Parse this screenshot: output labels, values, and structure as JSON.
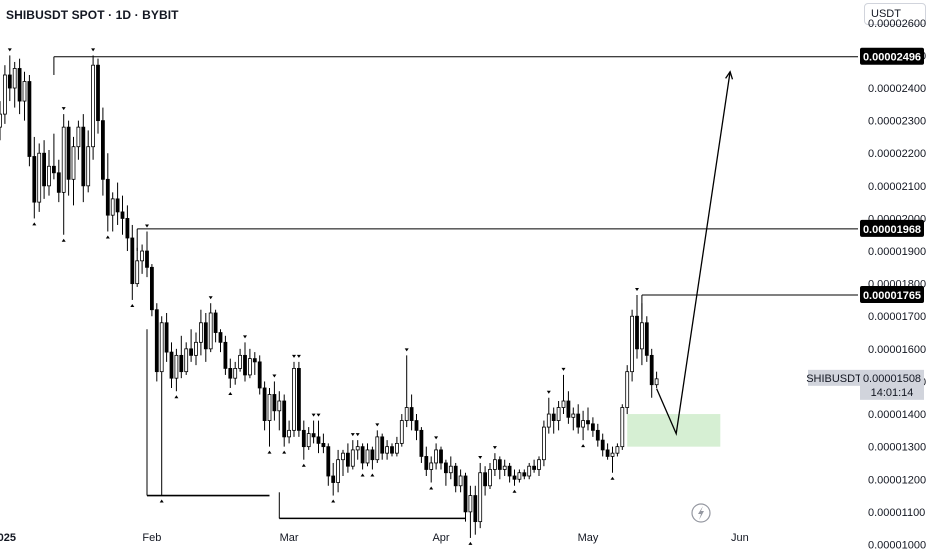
{
  "header": {
    "title": "SHIBUSDT SPOT · 1D · BYBIT",
    "currency_button": "USDT"
  },
  "colors": {
    "up": "#ffffff",
    "down": "#000000",
    "wick": "#000000",
    "line": "#000000",
    "zone": "#d6efd3",
    "highlight_bg": "#000000",
    "current_bg": "#d1d4dc",
    "arrow": "#000000"
  },
  "icons": {
    "replay": "lightning-bolt-icon"
  },
  "chart_data": {
    "type": "candlestick",
    "symbol": "SHIBUSDT",
    "exchange": "BYBIT",
    "interval": "1D",
    "y_ticks": [
      "0.00002600",
      "0.00002500",
      "0.00002400",
      "0.00002300",
      "0.00002200",
      "0.00002100",
      "0.00002000",
      "0.00001900",
      "0.00001800",
      "0.00001700",
      "0.00001600",
      "0.00001500",
      "0.00001400",
      "0.00001300",
      "0.00001200",
      "0.00001100",
      "0.00001000"
    ],
    "x_ticks": [
      "2025",
      "Feb",
      "Mar",
      "Apr",
      "May",
      "Jun"
    ],
    "ylim": [
      9.83e-06,
      2.67e-05
    ],
    "grid": false,
    "last_price": {
      "label": "SHIBUSDT",
      "value": "0.00001508",
      "countdown": "14:01:14"
    },
    "levels": [
      {
        "value": "0.00002496",
        "from": "2025-01-12"
      },
      {
        "value": "0.00001968",
        "from": "2025-01-29"
      },
      {
        "value": "0.00001765",
        "from": "2025-05-12"
      }
    ],
    "support_lines": [
      {
        "value": 1.15e-05,
        "from": "2025-01-31",
        "to": "2025-02-25"
      },
      {
        "value": 1.08e-05,
        "from": "2025-02-27",
        "to": "2025-04-06"
      }
    ],
    "zone": {
      "from": "2025-05-09",
      "to": "2025-05-28",
      "low": 1.3e-05,
      "high": 1.4e-05
    },
    "projection": [
      {
        "date": "2025-05-15",
        "price": 1.478e-05
      },
      {
        "date": "2025-05-19",
        "price": 1.34e-05
      },
      {
        "date": "2025-05-30",
        "price": 2.45e-05
      }
    ],
    "ohlc": [
      [
        "2024-12-29",
        2.15e-05,
        2.18e-05,
        2.08e-05,
        2.12e-05
      ],
      [
        "2024-12-30",
        2.12e-05,
        2.25e-05,
        2.09e-05,
        2.2e-05
      ],
      [
        "2024-12-31",
        2.2e-05,
        2.3e-05,
        2.15e-05,
        2.28e-05
      ],
      [
        "2025-01-01",
        2.28e-05,
        2.36e-05,
        2.24e-05,
        2.32e-05
      ],
      [
        "2025-01-02",
        2.32e-05,
        2.47e-05,
        2.29e-05,
        2.44e-05
      ],
      [
        "2025-01-03",
        2.44e-05,
        2.5e-05,
        2.36e-05,
        2.4e-05
      ],
      [
        "2025-01-04",
        2.4e-05,
        2.48e-05,
        2.34e-05,
        2.46e-05
      ],
      [
        "2025-01-05",
        2.46e-05,
        2.49e-05,
        2.32e-05,
        2.36e-05
      ],
      [
        "2025-01-06",
        2.36e-05,
        2.45e-05,
        2.3e-05,
        2.42e-05
      ],
      [
        "2025-01-07",
        2.42e-05,
        2.44e-05,
        2.16e-05,
        2.19e-05
      ],
      [
        "2025-01-08",
        2.19e-05,
        2.25e-05,
        2e-05,
        2.05e-05
      ],
      [
        "2025-01-09",
        2.05e-05,
        2.23e-05,
        2.02e-05,
        2.2e-05
      ],
      [
        "2025-01-10",
        2.2e-05,
        2.24e-05,
        2.06e-05,
        2.1e-05
      ],
      [
        "2025-01-11",
        2.1e-05,
        2.21e-05,
        2.07e-05,
        2.16e-05
      ],
      [
        "2025-01-12",
        2.16e-05,
        2.26e-05,
        2.12e-05,
        2.14e-05
      ],
      [
        "2025-01-13",
        2.14e-05,
        2.18e-05,
        2.05e-05,
        2.08e-05
      ],
      [
        "2025-01-14",
        2.08e-05,
        2.32e-05,
        1.95e-05,
        2.28e-05
      ],
      [
        "2025-01-15",
        2.28e-05,
        2.3e-05,
        2.07e-05,
        2.12e-05
      ],
      [
        "2025-01-16",
        2.12e-05,
        2.25e-05,
        2.04e-05,
        2.22e-05
      ],
      [
        "2025-01-17",
        2.22e-05,
        2.3e-05,
        2.18e-05,
        2.28e-05
      ],
      [
        "2025-01-18",
        2.28e-05,
        2.32e-05,
        2.05e-05,
        2.1e-05
      ],
      [
        "2025-01-19",
        2.1e-05,
        2.27e-05,
        2.08e-05,
        2.22e-05
      ],
      [
        "2025-01-20",
        2.22e-05,
        2.5e-05,
        2.18e-05,
        2.47e-05
      ],
      [
        "2025-01-21",
        2.47e-05,
        2.49e-05,
        2.26e-05,
        2.3e-05
      ],
      [
        "2025-01-22",
        2.3e-05,
        2.34e-05,
        2.07e-05,
        2.12e-05
      ],
      [
        "2025-01-23",
        2.12e-05,
        2.2e-05,
        1.96e-05,
        2.01e-05
      ],
      [
        "2025-01-24",
        2.01e-05,
        2.08e-05,
        1.96e-05,
        2.06e-05
      ],
      [
        "2025-01-25",
        2.06e-05,
        2.11e-05,
        1.98e-05,
        2.02e-05
      ],
      [
        "2025-01-26",
        2.02e-05,
        2.07e-05,
        1.95e-05,
        2e-05
      ],
      [
        "2025-01-27",
        2e-05,
        2.04e-05,
        1.9e-05,
        1.94e-05
      ],
      [
        "2025-01-28",
        1.94e-05,
        1.98e-05,
        1.75e-05,
        1.8e-05
      ],
      [
        "2025-01-29",
        1.8e-05,
        1.91e-05,
        1.79e-05,
        1.87e-05
      ],
      [
        "2025-01-30",
        1.87e-05,
        1.92e-05,
        1.83e-05,
        1.9e-05
      ],
      [
        "2025-01-31",
        1.9e-05,
        1.96e-05,
        1.82e-05,
        1.85e-05
      ],
      [
        "2025-02-01",
        1.85e-05,
        1.86e-05,
        1.7e-05,
        1.72e-05
      ],
      [
        "2025-02-02",
        1.72e-05,
        1.74e-05,
        1.5e-05,
        1.53e-05
      ],
      [
        "2025-02-03",
        1.53e-05,
        1.7e-05,
        1.15e-05,
        1.68e-05
      ],
      [
        "2025-02-04",
        1.68e-05,
        1.71e-05,
        1.56e-05,
        1.59e-05
      ],
      [
        "2025-02-05",
        1.59e-05,
        1.62e-05,
        1.48e-05,
        1.51e-05
      ],
      [
        "2025-02-06",
        1.51e-05,
        1.6e-05,
        1.47e-05,
        1.58e-05
      ],
      [
        "2025-02-07",
        1.58e-05,
        1.64e-05,
        1.51e-05,
        1.53e-05
      ],
      [
        "2025-02-08",
        1.53e-05,
        1.62e-05,
        1.52e-05,
        1.6e-05
      ],
      [
        "2025-02-09",
        1.6e-05,
        1.66e-05,
        1.56e-05,
        1.58e-05
      ],
      [
        "2025-02-10",
        1.58e-05,
        1.65e-05,
        1.55e-05,
        1.62e-05
      ],
      [
        "2025-02-11",
        1.62e-05,
        1.72e-05,
        1.58e-05,
        1.68e-05
      ],
      [
        "2025-02-12",
        1.68e-05,
        1.71e-05,
        1.56e-05,
        1.6e-05
      ],
      [
        "2025-02-13",
        1.6e-05,
        1.74e-05,
        1.59e-05,
        1.71e-05
      ],
      [
        "2025-02-14",
        1.71e-05,
        1.72e-05,
        1.62e-05,
        1.65e-05
      ],
      [
        "2025-02-15",
        1.65e-05,
        1.66e-05,
        1.59e-05,
        1.62e-05
      ],
      [
        "2025-02-16",
        1.62e-05,
        1.64e-05,
        1.52e-05,
        1.54e-05
      ],
      [
        "2025-02-17",
        1.54e-05,
        1.57e-05,
        1.48e-05,
        1.51e-05
      ],
      [
        "2025-02-18",
        1.51e-05,
        1.56e-05,
        1.49e-05,
        1.54e-05
      ],
      [
        "2025-02-19",
        1.54e-05,
        1.6e-05,
        1.53e-05,
        1.58e-05
      ],
      [
        "2025-02-20",
        1.58e-05,
        1.62e-05,
        1.5e-05,
        1.52e-05
      ],
      [
        "2025-02-21",
        1.52e-05,
        1.6e-05,
        1.51e-05,
        1.57e-05
      ],
      [
        "2025-02-22",
        1.57e-05,
        1.59e-05,
        1.52e-05,
        1.56e-05
      ],
      [
        "2025-02-23",
        1.56e-05,
        1.58e-05,
        1.46e-05,
        1.48e-05
      ],
      [
        "2025-02-24",
        1.48e-05,
        1.5e-05,
        1.35e-05,
        1.38e-05
      ],
      [
        "2025-02-25",
        1.38e-05,
        1.48e-05,
        1.3e-05,
        1.46e-05
      ],
      [
        "2025-02-26",
        1.46e-05,
        1.5e-05,
        1.38e-05,
        1.41e-05
      ],
      [
        "2025-02-27",
        1.41e-05,
        1.47e-05,
        1.35e-05,
        1.44e-05
      ],
      [
        "2025-02-28",
        1.44e-05,
        1.46e-05,
        1.3e-05,
        1.33e-05
      ],
      [
        "2025-03-01",
        1.33e-05,
        1.38e-05,
        1.31e-05,
        1.35e-05
      ],
      [
        "2025-03-02",
        1.35e-05,
        1.56e-05,
        1.33e-05,
        1.54e-05
      ],
      [
        "2025-03-03",
        1.54e-05,
        1.56e-05,
        1.33e-05,
        1.35e-05
      ],
      [
        "2025-03-04",
        1.35e-05,
        1.38e-05,
        1.26e-05,
        1.3e-05
      ],
      [
        "2025-03-05",
        1.3e-05,
        1.36e-05,
        1.29e-05,
        1.34e-05
      ],
      [
        "2025-03-06",
        1.34e-05,
        1.38e-05,
        1.31e-05,
        1.33e-05
      ],
      [
        "2025-03-07",
        1.33e-05,
        1.38e-05,
        1.28e-05,
        1.31e-05
      ],
      [
        "2025-03-08",
        1.31e-05,
        1.34e-05,
        1.28e-05,
        1.3e-05
      ],
      [
        "2025-03-09",
        1.3e-05,
        1.31e-05,
        1.18e-05,
        1.21e-05
      ],
      [
        "2025-03-10",
        1.21e-05,
        1.25e-05,
        1.15e-05,
        1.19e-05
      ],
      [
        "2025-03-11",
        1.19e-05,
        1.29e-05,
        1.16e-05,
        1.26e-05
      ],
      [
        "2025-03-12",
        1.26e-05,
        1.29e-05,
        1.21e-05,
        1.28e-05
      ],
      [
        "2025-03-13",
        1.28e-05,
        1.31e-05,
        1.22e-05,
        1.24e-05
      ],
      [
        "2025-03-14",
        1.24e-05,
        1.32e-05,
        1.23e-05,
        1.29e-05
      ],
      [
        "2025-03-15",
        1.29e-05,
        1.32e-05,
        1.26e-05,
        1.3e-05
      ],
      [
        "2025-03-16",
        1.3e-05,
        1.31e-05,
        1.23e-05,
        1.25e-05
      ],
      [
        "2025-03-17",
        1.25e-05,
        1.31e-05,
        1.24e-05,
        1.29e-05
      ],
      [
        "2025-03-18",
        1.29e-05,
        1.3e-05,
        1.23e-05,
        1.26e-05
      ],
      [
        "2025-03-19",
        1.26e-05,
        1.35e-05,
        1.25e-05,
        1.33e-05
      ],
      [
        "2025-03-20",
        1.33e-05,
        1.34e-05,
        1.26e-05,
        1.28e-05
      ],
      [
        "2025-03-21",
        1.28e-05,
        1.32e-05,
        1.26e-05,
        1.3e-05
      ],
      [
        "2025-03-22",
        1.3e-05,
        1.31e-05,
        1.27e-05,
        1.28e-05
      ],
      [
        "2025-03-23",
        1.28e-05,
        1.33e-05,
        1.27e-05,
        1.31e-05
      ],
      [
        "2025-03-24",
        1.31e-05,
        1.4e-05,
        1.3e-05,
        1.38e-05
      ],
      [
        "2025-03-25",
        1.38e-05,
        1.58e-05,
        1.36e-05,
        1.42e-05
      ],
      [
        "2025-03-26",
        1.42e-05,
        1.46e-05,
        1.35e-05,
        1.38e-05
      ],
      [
        "2025-03-27",
        1.38e-05,
        1.4e-05,
        1.32e-05,
        1.35e-05
      ],
      [
        "2025-03-28",
        1.35e-05,
        1.36e-05,
        1.25e-05,
        1.27e-05
      ],
      [
        "2025-03-29",
        1.27e-05,
        1.3e-05,
        1.21e-05,
        1.23e-05
      ],
      [
        "2025-03-30",
        1.23e-05,
        1.27e-05,
        1.19e-05,
        1.25e-05
      ],
      [
        "2025-03-31",
        1.25e-05,
        1.31e-05,
        1.23e-05,
        1.29e-05
      ],
      [
        "2025-04-01",
        1.29e-05,
        1.3e-05,
        1.23e-05,
        1.25e-05
      ],
      [
        "2025-04-02",
        1.25e-05,
        1.26e-05,
        1.18e-05,
        1.22e-05
      ],
      [
        "2025-04-03",
        1.22e-05,
        1.27e-05,
        1.2e-05,
        1.24e-05
      ],
      [
        "2025-04-04",
        1.24e-05,
        1.25e-05,
        1.16e-05,
        1.18e-05
      ],
      [
        "2025-04-05",
        1.18e-05,
        1.23e-05,
        1.16e-05,
        1.21e-05
      ],
      [
        "2025-04-06",
        1.21e-05,
        1.22e-05,
        1.07e-05,
        1.1e-05
      ],
      [
        "2025-04-07",
        1.1e-05,
        1.18e-05,
        1.02e-05,
        1.15e-05
      ],
      [
        "2025-04-08",
        1.15e-05,
        1.18e-05,
        1.03e-05,
        1.07e-05
      ],
      [
        "2025-04-09",
        1.07e-05,
        1.25e-05,
        1.05e-05,
        1.22e-05
      ],
      [
        "2025-04-10",
        1.22e-05,
        1.24e-05,
        1.15e-05,
        1.18e-05
      ],
      [
        "2025-04-11",
        1.18e-05,
        1.25e-05,
        1.17e-05,
        1.23e-05
      ],
      [
        "2025-04-12",
        1.23e-05,
        1.28e-05,
        1.21e-05,
        1.26e-05
      ],
      [
        "2025-04-13",
        1.26e-05,
        1.27e-05,
        1.2e-05,
        1.23e-05
      ],
      [
        "2025-04-14",
        1.23e-05,
        1.26e-05,
        1.21e-05,
        1.24e-05
      ],
      [
        "2025-04-15",
        1.24e-05,
        1.25e-05,
        1.19e-05,
        1.21e-05
      ],
      [
        "2025-04-16",
        1.21e-05,
        1.23e-05,
        1.18e-05,
        1.2e-05
      ],
      [
        "2025-04-17",
        1.2e-05,
        1.23e-05,
        1.19e-05,
        1.22e-05
      ],
      [
        "2025-04-18",
        1.22e-05,
        1.23e-05,
        1.2e-05,
        1.21e-05
      ],
      [
        "2025-04-19",
        1.21e-05,
        1.25e-05,
        1.2e-05,
        1.24e-05
      ],
      [
        "2025-04-20",
        1.24e-05,
        1.26e-05,
        1.22e-05,
        1.23e-05
      ],
      [
        "2025-04-21",
        1.23e-05,
        1.27e-05,
        1.21e-05,
        1.26e-05
      ],
      [
        "2025-04-22",
        1.26e-05,
        1.38e-05,
        1.24e-05,
        1.36e-05
      ],
      [
        "2025-04-23",
        1.36e-05,
        1.45e-05,
        1.34e-05,
        1.4e-05
      ],
      [
        "2025-04-24",
        1.4e-05,
        1.42e-05,
        1.34e-05,
        1.38e-05
      ],
      [
        "2025-04-25",
        1.38e-05,
        1.44e-05,
        1.35e-05,
        1.42e-05
      ],
      [
        "2025-04-26",
        1.42e-05,
        1.52e-05,
        1.4e-05,
        1.44e-05
      ],
      [
        "2025-04-27",
        1.44e-05,
        1.47e-05,
        1.37e-05,
        1.39e-05
      ],
      [
        "2025-04-28",
        1.39e-05,
        1.42e-05,
        1.35e-05,
        1.4e-05
      ],
      [
        "2025-04-29",
        1.4e-05,
        1.43e-05,
        1.34e-05,
        1.36e-05
      ],
      [
        "2025-04-30",
        1.36e-05,
        1.41e-05,
        1.32e-05,
        1.38e-05
      ],
      [
        "2025-05-01",
        1.38e-05,
        1.42e-05,
        1.35e-05,
        1.37e-05
      ],
      [
        "2025-05-02",
        1.37e-05,
        1.39e-05,
        1.33e-05,
        1.35e-05
      ],
      [
        "2025-05-03",
        1.35e-05,
        1.37e-05,
        1.3e-05,
        1.32e-05
      ],
      [
        "2025-05-04",
        1.32e-05,
        1.34e-05,
        1.27e-05,
        1.29e-05
      ],
      [
        "2025-05-05",
        1.29e-05,
        1.31e-05,
        1.26e-05,
        1.27e-05
      ],
      [
        "2025-05-06",
        1.27e-05,
        1.3e-05,
        1.22e-05,
        1.28e-05
      ],
      [
        "2025-05-07",
        1.28e-05,
        1.31e-05,
        1.27e-05,
        1.3e-05
      ],
      [
        "2025-05-08",
        1.3e-05,
        1.43e-05,
        1.29e-05,
        1.42e-05
      ],
      [
        "2025-05-09",
        1.42e-05,
        1.55e-05,
        1.4e-05,
        1.53e-05
      ],
      [
        "2025-05-10",
        1.53e-05,
        1.72e-05,
        1.5e-05,
        1.7e-05
      ],
      [
        "2025-05-11",
        1.7e-05,
        1.765e-05,
        1.57e-05,
        1.6e-05
      ],
      [
        "2025-05-12",
        1.6e-05,
        1.74e-05,
        1.55e-05,
        1.68e-05
      ],
      [
        "2025-05-13",
        1.68e-05,
        1.7e-05,
        1.56e-05,
        1.58e-05
      ],
      [
        "2025-05-14",
        1.58e-05,
        1.6e-05,
        1.45e-05,
        1.49e-05
      ],
      [
        "2025-05-15",
        1.49e-05,
        1.53e-05,
        1.48e-05,
        1.508e-05
      ]
    ]
  }
}
